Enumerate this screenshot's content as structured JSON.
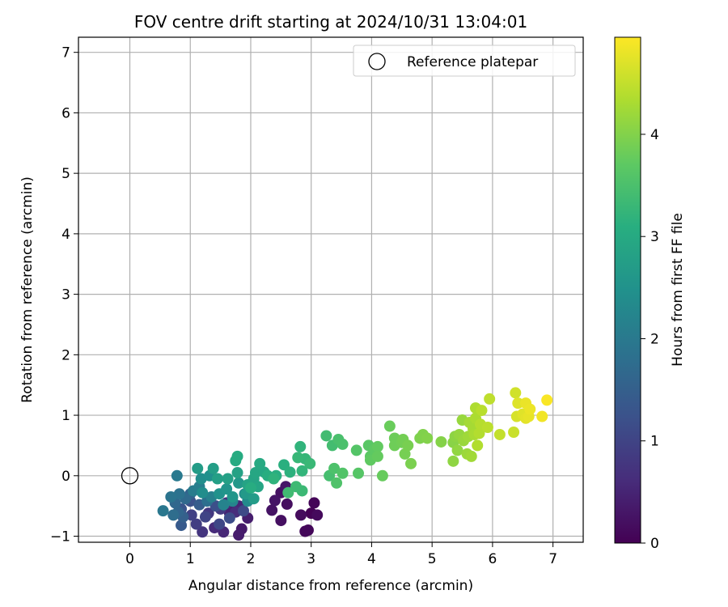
{
  "chart_data": {
    "type": "scatter",
    "title": "FOV centre drift starting at 2024/10/31 13:04:01",
    "xlabel": "Angular distance from reference (arcmin)",
    "ylabel": "Rotation from reference (arcmin)",
    "xlim": [
      -0.85,
      7.5
    ],
    "ylim": [
      -1.1,
      7.25
    ],
    "xticks": [
      0,
      1,
      2,
      3,
      4,
      5,
      6,
      7
    ],
    "yticks": [
      -1,
      0,
      1,
      2,
      3,
      4,
      5,
      6,
      7
    ],
    "grid": true,
    "colormap": "viridis",
    "colorbar": {
      "label": "Hours from first FF file",
      "range": [
        0,
        4.95
      ],
      "ticks": [
        0,
        1,
        2,
        3,
        4
      ]
    },
    "legend": {
      "placement": "top-right",
      "entries": [
        {
          "label": "Reference platepar",
          "marker": "open-circle"
        }
      ]
    },
    "reference_point": {
      "x": 0,
      "y": 0
    },
    "points": [
      [
        3.0,
        -0.62,
        0.02
      ],
      [
        3.05,
        -0.45,
        0.05
      ],
      [
        2.95,
        -0.9,
        0.08
      ],
      [
        2.9,
        -0.92,
        0.1
      ],
      [
        3.1,
        -0.65,
        0.12
      ],
      [
        2.83,
        -0.65,
        0.15
      ],
      [
        2.6,
        -0.47,
        0.18
      ],
      [
        2.5,
        -0.74,
        0.2
      ],
      [
        2.5,
        -0.28,
        0.22
      ],
      [
        2.35,
        -0.57,
        0.25
      ],
      [
        2.4,
        -0.41,
        0.28
      ],
      [
        2.58,
        -0.18,
        0.3
      ],
      [
        1.85,
        -0.88,
        0.35
      ],
      [
        1.8,
        -0.98,
        0.38
      ],
      [
        1.95,
        -0.7,
        0.4
      ],
      [
        1.72,
        -0.57,
        0.45
      ],
      [
        1.65,
        -0.62,
        0.48
      ],
      [
        1.8,
        -0.5,
        0.52
      ],
      [
        1.55,
        -0.93,
        0.55
      ],
      [
        1.4,
        -0.86,
        0.6
      ],
      [
        1.75,
        -0.6,
        0.62
      ],
      [
        1.6,
        -0.45,
        0.68
      ],
      [
        1.2,
        -0.93,
        0.75
      ],
      [
        1.3,
        -0.62,
        0.8
      ],
      [
        1.5,
        -0.55,
        0.85
      ],
      [
        1.1,
        -0.8,
        0.9
      ],
      [
        1.02,
        -0.65,
        0.95
      ],
      [
        1.25,
        -0.68,
        1.0
      ],
      [
        1.48,
        -0.8,
        1.05
      ],
      [
        1.88,
        -0.58,
        1.1
      ],
      [
        1.65,
        -0.7,
        1.15
      ],
      [
        1.42,
        -0.5,
        1.2
      ],
      [
        1.0,
        -0.42,
        1.25
      ],
      [
        0.85,
        -0.55,
        1.3
      ],
      [
        0.85,
        -0.82,
        1.4
      ],
      [
        1.15,
        -0.48,
        1.45
      ],
      [
        0.88,
        -0.68,
        1.5
      ],
      [
        1.0,
        -0.3,
        1.55
      ],
      [
        0.8,
        -0.6,
        1.6
      ],
      [
        0.75,
        -0.45,
        1.65
      ],
      [
        0.92,
        -0.38,
        1.7
      ],
      [
        0.72,
        -0.65,
        1.75
      ],
      [
        1.28,
        -0.42,
        1.8
      ],
      [
        0.82,
        -0.3,
        1.85
      ],
      [
        0.68,
        -0.35,
        1.9
      ],
      [
        0.55,
        -0.58,
        1.95
      ],
      [
        0.78,
        0.0,
        2.0
      ],
      [
        1.05,
        -0.25,
        2.05
      ],
      [
        1.15,
        -0.18,
        2.1
      ],
      [
        1.35,
        -0.35,
        2.15
      ],
      [
        1.55,
        -0.48,
        2.2
      ],
      [
        1.7,
        -0.42,
        2.25
      ],
      [
        1.9,
        -0.3,
        2.3
      ],
      [
        1.95,
        -0.42,
        2.35
      ],
      [
        1.2,
        -0.28,
        2.4
      ],
      [
        1.18,
        -0.05,
        2.42
      ],
      [
        1.32,
        0.0,
        2.45
      ],
      [
        1.48,
        -0.3,
        2.5
      ],
      [
        1.6,
        -0.22,
        2.55
      ],
      [
        1.7,
        -0.35,
        2.58
      ],
      [
        1.8,
        -0.12,
        2.62
      ],
      [
        1.92,
        -0.3,
        2.65
      ],
      [
        2.05,
        -0.38,
        2.7
      ],
      [
        1.12,
        0.12,
        2.72
      ],
      [
        1.38,
        0.12,
        2.75
      ],
      [
        1.45,
        -0.05,
        2.78
      ],
      [
        1.62,
        -0.05,
        2.8
      ],
      [
        1.78,
        0.05,
        2.82
      ],
      [
        1.95,
        -0.15,
        2.85
      ],
      [
        2.05,
        -0.05,
        2.88
      ],
      [
        2.12,
        -0.18,
        2.9
      ],
      [
        2.08,
        0.05,
        2.92
      ],
      [
        2.22,
        0.06,
        2.95
      ],
      [
        2.15,
        0.2,
        2.98
      ],
      [
        1.75,
        0.25,
        3.0
      ],
      [
        1.78,
        0.32,
        3.02
      ],
      [
        2.0,
        -0.2,
        3.05
      ],
      [
        2.28,
        0.0,
        3.08
      ],
      [
        2.42,
        0.0,
        3.1
      ],
      [
        2.55,
        0.18,
        3.12
      ],
      [
        2.65,
        0.06,
        3.15
      ],
      [
        2.38,
        -0.05,
        3.18
      ],
      [
        2.82,
        0.48,
        3.2
      ],
      [
        2.85,
        0.08,
        3.22
      ],
      [
        2.9,
        0.28,
        3.25
      ],
      [
        2.78,
        0.3,
        3.28
      ],
      [
        2.98,
        0.2,
        3.3
      ],
      [
        2.85,
        -0.25,
        3.32
      ],
      [
        2.75,
        -0.18,
        3.35
      ],
      [
        2.62,
        -0.28,
        3.38
      ],
      [
        3.25,
        0.66,
        3.4
      ],
      [
        3.35,
        0.5,
        3.42
      ],
      [
        3.3,
        0.0,
        3.45
      ],
      [
        3.45,
        0.6,
        3.48
      ],
      [
        3.52,
        0.52,
        3.5
      ],
      [
        3.38,
        0.12,
        3.52
      ],
      [
        3.42,
        -0.12,
        3.55
      ],
      [
        3.52,
        0.04,
        3.58
      ],
      [
        3.75,
        0.42,
        3.6
      ],
      [
        3.78,
        0.04,
        3.62
      ],
      [
        3.95,
        0.5,
        3.65
      ],
      [
        3.98,
        0.32,
        3.68
      ],
      [
        4.05,
        0.44,
        3.7
      ],
      [
        3.98,
        0.26,
        3.72
      ],
      [
        4.1,
        0.48,
        3.74
      ],
      [
        4.1,
        0.32,
        3.76
      ],
      [
        4.18,
        0.0,
        3.78
      ],
      [
        4.3,
        0.82,
        3.8
      ],
      [
        4.38,
        0.62,
        3.82
      ],
      [
        4.38,
        0.5,
        3.84
      ],
      [
        4.5,
        0.55,
        3.86
      ],
      [
        4.52,
        0.6,
        3.88
      ],
      [
        4.55,
        0.36,
        3.9
      ],
      [
        4.6,
        0.5,
        3.92
      ],
      [
        4.65,
        0.2,
        3.94
      ],
      [
        4.8,
        0.62,
        3.96
      ],
      [
        4.85,
        0.68,
        3.98
      ],
      [
        4.92,
        0.62,
        4.0
      ],
      [
        5.15,
        0.56,
        4.02
      ],
      [
        5.35,
        0.55,
        4.05
      ],
      [
        5.38,
        0.65,
        4.08
      ],
      [
        5.35,
        0.24,
        4.1
      ],
      [
        5.42,
        0.42,
        4.12
      ],
      [
        5.45,
        0.68,
        4.14
      ],
      [
        5.5,
        0.92,
        4.16
      ],
      [
        5.52,
        0.58,
        4.18
      ],
      [
        5.58,
        0.36,
        4.2
      ],
      [
        5.6,
        0.65,
        4.22
      ],
      [
        5.65,
        0.32,
        4.24
      ],
      [
        5.62,
        0.88,
        4.26
      ],
      [
        5.68,
        0.78,
        4.28
      ],
      [
        5.7,
        0.68,
        4.3
      ],
      [
        5.72,
        0.95,
        4.32
      ],
      [
        5.72,
        1.12,
        4.34
      ],
      [
        5.75,
        0.5,
        4.36
      ],
      [
        5.78,
        0.7,
        4.38
      ],
      [
        5.8,
        0.85,
        4.4
      ],
      [
        5.82,
        1.08,
        4.42
      ],
      [
        5.92,
        0.8,
        4.44
      ],
      [
        5.95,
        1.27,
        4.46
      ],
      [
        6.12,
        0.68,
        4.5
      ],
      [
        6.35,
        0.72,
        4.55
      ],
      [
        6.38,
        1.37,
        4.6
      ],
      [
        6.4,
        0.98,
        4.65
      ],
      [
        6.42,
        1.2,
        4.7
      ],
      [
        6.5,
        1.02,
        4.72
      ],
      [
        6.55,
        0.95,
        4.75
      ],
      [
        6.6,
        0.98,
        4.78
      ],
      [
        6.55,
        1.2,
        4.8
      ],
      [
        6.62,
        1.1,
        4.82
      ],
      [
        6.82,
        0.98,
        4.86
      ],
      [
        6.9,
        1.25,
        4.92
      ]
    ]
  }
}
